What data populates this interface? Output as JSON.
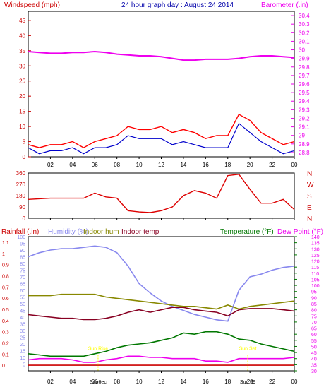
{
  "header": {
    "left_title": "Windspeed (mph)",
    "center_title": "24 hour graph day : August 24 2014",
    "right_title": "Barometer (.in)"
  },
  "colors": {
    "wind": "#ff0000",
    "wind_avg": "#0000cc",
    "barometer": "#ee00ee",
    "wind_dir": "#dd0000",
    "rain_axis": "#cc0000",
    "humidity": "#8888ee",
    "indoor_hum": "#888800",
    "indoor_temp": "#880022",
    "temperature": "#007700",
    "dew_point": "#ee00ee",
    "sun_marker": "#ffff00",
    "grid": "#000000"
  },
  "x_ticks": [
    "02",
    "04",
    "06",
    "08",
    "10",
    "12",
    "14",
    "16",
    "18",
    "20",
    "22",
    "00"
  ],
  "chart_data": [
    {
      "type": "line",
      "id": "wind_barometer",
      "left_axis": {
        "label": "Windspeed (mph)",
        "ticks": [
          0,
          5,
          10,
          15,
          20,
          25,
          30,
          35,
          40,
          45
        ],
        "range": [
          0,
          48
        ]
      },
      "right_axis": {
        "label": "Barometer (.in)",
        "ticks": [
          "28.8",
          "28.9",
          "29",
          "29.1",
          "29.2",
          "29.3",
          "29.4",
          "29.5",
          "29.6",
          "29.7",
          "29.8",
          "29.9",
          "30",
          "30.1",
          "30.2",
          "30.3",
          "30.4"
        ],
        "range": [
          28.75,
          30.45
        ]
      },
      "x_hours": [
        0,
        1,
        2,
        3,
        4,
        5,
        6,
        7,
        8,
        9,
        10,
        11,
        12,
        13,
        14,
        15,
        16,
        17,
        18,
        19,
        20,
        21,
        22,
        23,
        24
      ],
      "series": [
        {
          "name": "gust",
          "axis": "left",
          "values": [
            4,
            3,
            4,
            4,
            5,
            3,
            5,
            6,
            7,
            10,
            9,
            9,
            10,
            8,
            9,
            8,
            6,
            7,
            7,
            14,
            12,
            8,
            6,
            4,
            5
          ]
        },
        {
          "name": "average",
          "axis": "left",
          "values": [
            3,
            1,
            2,
            2,
            3,
            1,
            3,
            3,
            4,
            7,
            6,
            6,
            6,
            4,
            5,
            4,
            3,
            3,
            3,
            11,
            8,
            5,
            3,
            1,
            2
          ]
        },
        {
          "name": "barometer",
          "axis": "right",
          "values": [
            29.98,
            29.97,
            29.96,
            29.96,
            29.97,
            29.97,
            29.98,
            29.97,
            29.95,
            29.94,
            29.93,
            29.93,
            29.92,
            29.9,
            29.88,
            29.88,
            29.89,
            29.89,
            29.89,
            29.9,
            29.92,
            29.93,
            29.93,
            29.92,
            29.91
          ]
        }
      ]
    },
    {
      "type": "line",
      "id": "wind_direction",
      "left_axis": {
        "ticks": [
          0,
          90,
          180,
          270,
          360
        ],
        "range": [
          0,
          360
        ]
      },
      "right_axis": {
        "labels": [
          "N",
          "W",
          "S",
          "E",
          "N"
        ]
      },
      "x_hours": [
        0,
        1,
        2,
        3,
        4,
        5,
        6,
        7,
        8,
        9,
        10,
        11,
        12,
        13,
        14,
        15,
        16,
        17,
        18,
        19,
        20,
        21,
        22,
        23,
        24
      ],
      "series": [
        {
          "name": "direction",
          "values": [
            150,
            155,
            160,
            160,
            160,
            160,
            200,
            170,
            160,
            60,
            50,
            45,
            60,
            90,
            180,
            220,
            200,
            160,
            340,
            350,
            230,
            120,
            120,
            150,
            70
          ]
        }
      ]
    },
    {
      "type": "line",
      "id": "temperature_humidity",
      "legend": [
        "Rainfall (.in)",
        "Humidity (%)",
        "Indoor hum",
        "Indoor temp",
        "Temperature (°F)",
        "Dew Point (°F)"
      ],
      "rain_axis": {
        "label": "Rainfall (.in)",
        "ticks": [
          "0",
          "0.1",
          "0.2",
          "0.3",
          "0.4",
          "0.5",
          "0.6",
          "0.7",
          "0.8",
          "0.9",
          "1",
          "1.1"
        ],
        "range": [
          -0.05,
          1.15
        ]
      },
      "humidity_axis": {
        "label": "Humidity (%)",
        "ticks": [
          5,
          10,
          15,
          20,
          25,
          30,
          35,
          40,
          45,
          50,
          55,
          60,
          65,
          70,
          75,
          80,
          85,
          90,
          95,
          100
        ],
        "range": [
          0,
          100
        ]
      },
      "temp_axis": {
        "label": "Temperature (°F)",
        "ticks": [
          30,
          35,
          40,
          45,
          50,
          55,
          60,
          65,
          70,
          75,
          80,
          85,
          90,
          95,
          100,
          105,
          110,
          115,
          120,
          125,
          130,
          135,
          140
        ],
        "range": [
          30,
          140
        ]
      },
      "x_hours": [
        0,
        1,
        2,
        3,
        4,
        5,
        6,
        7,
        8,
        9,
        10,
        11,
        12,
        13,
        14,
        15,
        16,
        17,
        18,
        19,
        20,
        21,
        22,
        23,
        24
      ],
      "series": [
        {
          "name": "Humidity (%)",
          "axis": "humidity",
          "values": [
            85,
            88,
            90,
            91,
            91,
            92,
            93,
            92,
            88,
            78,
            65,
            58,
            52,
            48,
            45,
            42,
            40,
            38,
            37,
            60,
            70,
            72,
            75,
            77,
            78
          ]
        },
        {
          "name": "Indoor hum",
          "axis": "humidity",
          "values": [
            56,
            56,
            56,
            57,
            57,
            57,
            57,
            55,
            54,
            53,
            52,
            51,
            50,
            49,
            48,
            48,
            47,
            46,
            49,
            46,
            48,
            49,
            50,
            51,
            52
          ]
        },
        {
          "name": "Indoor temp",
          "axis": "temp",
          "values": [
            76,
            75,
            74,
            73,
            73,
            72,
            72,
            73,
            75,
            78,
            80,
            78,
            80,
            82,
            82,
            80,
            79,
            78,
            75,
            80,
            81,
            81,
            81,
            80,
            79
          ]
        },
        {
          "name": "Temperature (°F)",
          "axis": "temp",
          "values": [
            44,
            43,
            42,
            42,
            42,
            42,
            44,
            46,
            49,
            51,
            52,
            53,
            55,
            57,
            61,
            60,
            62,
            62,
            60,
            56,
            55,
            52,
            50,
            48,
            46
          ]
        },
        {
          "name": "Dew Point (°F)",
          "axis": "temp",
          "values": [
            39,
            40,
            40,
            40,
            39,
            37,
            37,
            39,
            40,
            42,
            42,
            41,
            41,
            40,
            40,
            40,
            38,
            38,
            37,
            40,
            40,
            40,
            40,
            40,
            41
          ]
        },
        {
          "name": "Rainfall (.in)",
          "axis": "rain",
          "values": [
            0,
            0,
            0,
            0,
            0,
            0,
            0,
            0,
            0,
            0,
            0,
            0,
            0,
            0,
            0,
            0,
            0,
            0,
            0,
            0,
            0,
            0,
            0,
            0,
            0
          ]
        }
      ],
      "annotations": [
        {
          "text": "Sun Rise",
          "hour": 6.3
        },
        {
          "text": "Sun Set",
          "hour": 19.8
        }
      ],
      "bottom_labels": [
        "Sun6ec",
        "Sun 29"
      ]
    }
  ]
}
